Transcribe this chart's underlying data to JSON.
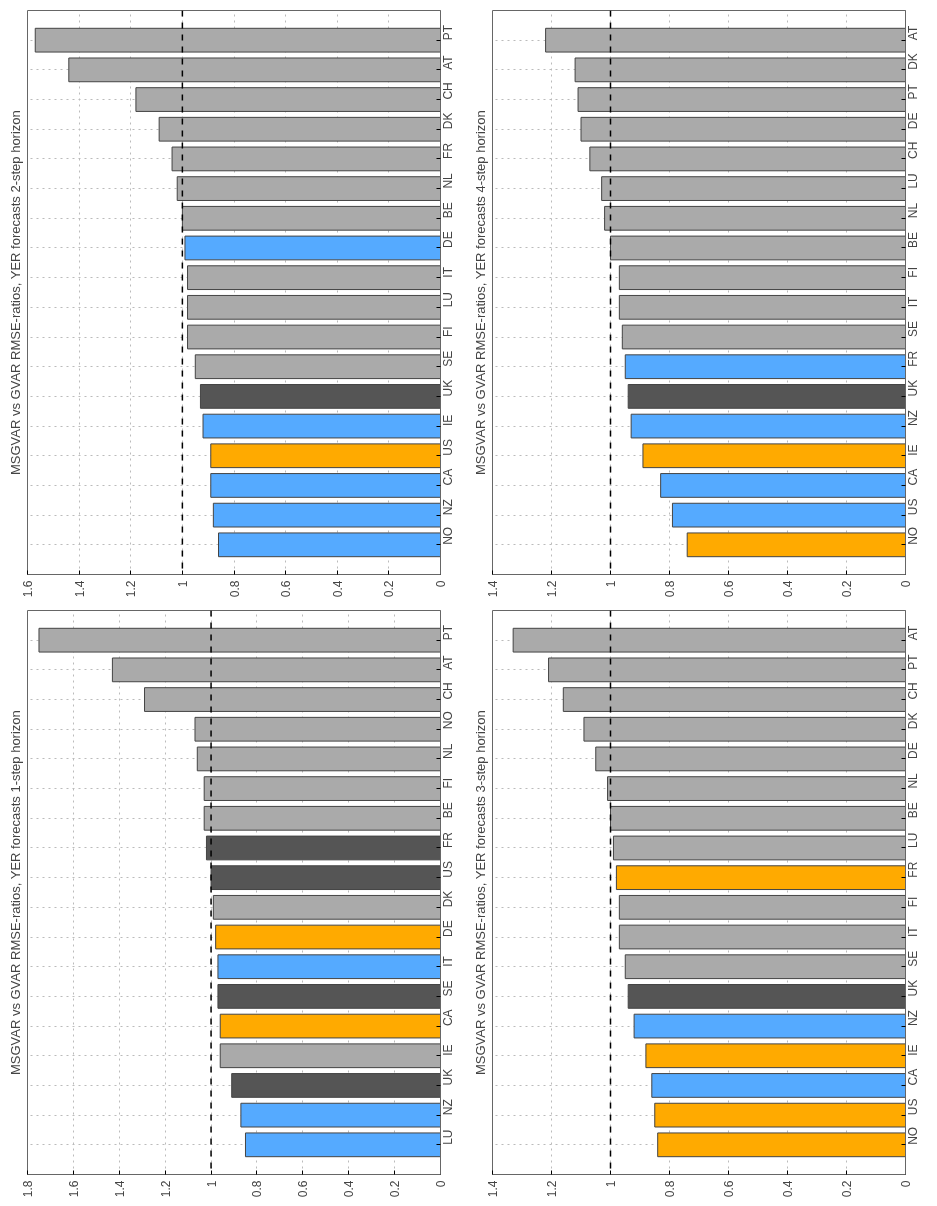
{
  "chart_data": [
    {
      "type": "bar",
      "orientation": "horizontal",
      "title": "MSGVAR vs GVAR RMSE-ratios, YER forecasts 2-step horizon",
      "categories": [
        "PT",
        "AT",
        "CH",
        "DK",
        "FR",
        "NL",
        "BE",
        "DE",
        "IT",
        "LU",
        "FI",
        "SE",
        "UK",
        "IE",
        "US",
        "CA",
        "NZ",
        "NO"
      ],
      "values": [
        1.57,
        1.44,
        1.18,
        1.09,
        1.04,
        1.02,
        1.0,
        0.99,
        0.98,
        0.98,
        0.98,
        0.95,
        0.93,
        0.92,
        0.89,
        0.89,
        0.88,
        0.86
      ],
      "colors": [
        "#aaaaaa",
        "#aaaaaa",
        "#aaaaaa",
        "#aaaaaa",
        "#aaaaaa",
        "#aaaaaa",
        "#aaaaaa",
        "#55aaff",
        "#aaaaaa",
        "#aaaaaa",
        "#aaaaaa",
        "#aaaaaa",
        "#555555",
        "#55aaff",
        "#ffaa00",
        "#55aaff",
        "#55aaff",
        "#55aaff"
      ],
      "xlim": [
        1.6,
        0
      ],
      "xticks": [
        1.6,
        1.4,
        1.2,
        1,
        0.8,
        0.6,
        0.4,
        0.2,
        0
      ],
      "grid": true,
      "ref_lines": [
        {
          "axis": "x",
          "value": 1,
          "color": "#000000",
          "line_style": "dashed"
        }
      ]
    },
    {
      "type": "bar",
      "orientation": "horizontal",
      "title": "MSGVAR vs GVAR RMSE-ratios, YER forecasts 4-step horizon",
      "categories": [
        "AT",
        "DK",
        "PT",
        "DE",
        "CH",
        "LU",
        "NL",
        "BE",
        "FI",
        "IT",
        "SE",
        "FR",
        "UK",
        "NZ",
        "IE",
        "CA",
        "US",
        "NO"
      ],
      "values": [
        1.22,
        1.12,
        1.11,
        1.1,
        1.07,
        1.03,
        1.02,
        1.0,
        0.97,
        0.97,
        0.96,
        0.95,
        0.94,
        0.93,
        0.89,
        0.83,
        0.79,
        0.74
      ],
      "colors": [
        "#aaaaaa",
        "#aaaaaa",
        "#aaaaaa",
        "#aaaaaa",
        "#aaaaaa",
        "#aaaaaa",
        "#aaaaaa",
        "#aaaaaa",
        "#aaaaaa",
        "#aaaaaa",
        "#aaaaaa",
        "#55aaff",
        "#555555",
        "#55aaff",
        "#ffaa00",
        "#55aaff",
        "#55aaff",
        "#ffaa00"
      ],
      "xlim": [
        1.4,
        0
      ],
      "xticks": [
        1.4,
        1.2,
        1,
        0.8,
        0.6,
        0.4,
        0.2,
        0
      ],
      "grid": true,
      "ref_lines": [
        {
          "axis": "x",
          "value": 1,
          "color": "#000000",
          "line_style": "dashed"
        }
      ]
    },
    {
      "type": "bar",
      "orientation": "horizontal",
      "title": "MSGVAR vs GVAR RMSE-ratios, YER forecasts 1-step horizon",
      "categories": [
        "PT",
        "AT",
        "CH",
        "NO",
        "NL",
        "FI",
        "BE",
        "FR",
        "US",
        "DK",
        "DE",
        "IT",
        "SE",
        "CA",
        "IE",
        "UK",
        "NZ",
        "LU"
      ],
      "values": [
        1.75,
        1.43,
        1.29,
        1.07,
        1.06,
        1.03,
        1.03,
        1.02,
        1.0,
        0.99,
        0.98,
        0.97,
        0.97,
        0.96,
        0.96,
        0.91,
        0.87,
        0.85
      ],
      "colors": [
        "#aaaaaa",
        "#aaaaaa",
        "#aaaaaa",
        "#aaaaaa",
        "#aaaaaa",
        "#aaaaaa",
        "#aaaaaa",
        "#555555",
        "#555555",
        "#aaaaaa",
        "#ffaa00",
        "#55aaff",
        "#555555",
        "#ffaa00",
        "#aaaaaa",
        "#555555",
        "#55aaff",
        "#55aaff"
      ],
      "xlim": [
        1.8,
        0
      ],
      "xticks": [
        1.8,
        1.6,
        1.4,
        1.2,
        1,
        0.8,
        0.6,
        0.4,
        0.2,
        0
      ],
      "grid": true,
      "ref_lines": [
        {
          "axis": "x",
          "value": 1,
          "color": "#000000",
          "line_style": "dashed"
        }
      ]
    },
    {
      "type": "bar",
      "orientation": "horizontal",
      "title": "MSGVAR vs GVAR RMSE-ratios, YER forecasts 3-step horizon",
      "categories": [
        "AT",
        "PT",
        "CH",
        "DK",
        "DE",
        "NL",
        "BE",
        "LU",
        "FR",
        "FI",
        "IT",
        "SE",
        "UK",
        "NZ",
        "IE",
        "CA",
        "US",
        "NO"
      ],
      "values": [
        1.33,
        1.21,
        1.16,
        1.09,
        1.05,
        1.01,
        1.0,
        0.99,
        0.98,
        0.97,
        0.97,
        0.95,
        0.94,
        0.92,
        0.88,
        0.86,
        0.85,
        0.84
      ],
      "colors": [
        "#aaaaaa",
        "#aaaaaa",
        "#aaaaaa",
        "#aaaaaa",
        "#aaaaaa",
        "#aaaaaa",
        "#aaaaaa",
        "#aaaaaa",
        "#ffaa00",
        "#aaaaaa",
        "#aaaaaa",
        "#aaaaaa",
        "#555555",
        "#55aaff",
        "#ffaa00",
        "#55aaff",
        "#ffaa00",
        "#ffaa00"
      ],
      "xlim": [
        1.4,
        0
      ],
      "xticks": [
        1.4,
        1.2,
        1,
        0.8,
        0.6,
        0.4,
        0.2,
        0
      ],
      "grid": true,
      "ref_lines": [
        {
          "axis": "x",
          "value": 1,
          "color": "#000000",
          "line_style": "dashed"
        }
      ]
    }
  ]
}
